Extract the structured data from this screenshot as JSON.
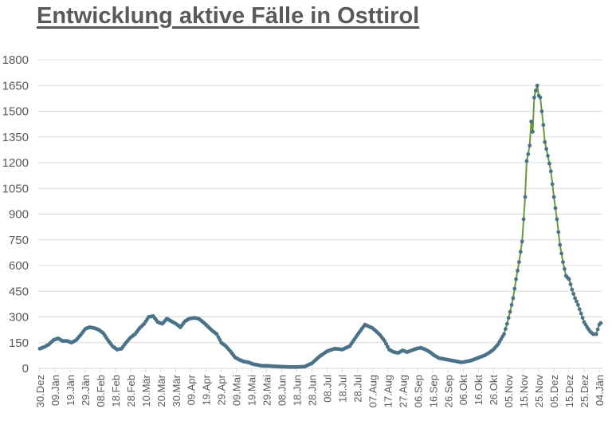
{
  "title": "Entwicklung aktive Fälle in Osttirol",
  "colors": {
    "title": "#595959",
    "axis_text": "#595959",
    "grid": "#d9d9d9",
    "line": "#6a9a3a",
    "marker": "#4a7389"
  },
  "chart_data": {
    "type": "line",
    "title": "Entwicklung aktive Fälle in Osttirol",
    "xlabel": "",
    "ylabel": "",
    "ylim": [
      0,
      1800
    ],
    "yticks": [
      0,
      150,
      300,
      450,
      600,
      750,
      900,
      1050,
      1200,
      1350,
      1500,
      1650,
      1800
    ],
    "grid": true,
    "legend": "none",
    "x_tick_labels": [
      "30.Dez",
      "09.Jän",
      "19.Jän",
      "29.Jän",
      "08.Feb",
      "18.Feb",
      "28.Feb",
      "10.Mär",
      "20.Mär",
      "30.Mär",
      "09.Apr",
      "19.Apr",
      "29.Apr",
      "09.Mai",
      "19.Mai",
      "29.Mai",
      "08.Jun",
      "18.Jun",
      "28.Jun",
      "08.Jul",
      "18.Jul",
      "28.Jul",
      "07.Aug",
      "17.Aug",
      "27.Aug",
      "06.Sep",
      "16.Sep",
      "26.Sep",
      "06.Okt",
      "16.Okt",
      "26.Okt",
      "05.Nov",
      "15.Nov",
      "25.Nov",
      "05.Dez",
      "15.Dez",
      "25.Dez",
      "04.Jän"
    ],
    "x_day_offset_note": "day 0 = 30.Dez, ticks every 10 days",
    "series": [
      {
        "name": "aktive Fälle",
        "days": [
          0,
          3,
          6,
          9,
          12,
          15,
          18,
          21,
          24,
          27,
          30,
          33,
          36,
          39,
          42,
          45,
          48,
          51,
          54,
          57,
          60,
          63,
          66,
          69,
          72,
          75,
          78,
          81,
          84,
          87,
          90,
          93,
          96,
          99,
          102,
          105,
          108,
          111,
          114,
          117,
          120,
          123,
          126,
          129,
          132,
          135,
          138,
          141,
          144,
          147,
          150,
          155,
          160,
          165,
          170,
          175,
          180,
          185,
          190,
          195,
          200,
          205,
          210,
          215,
          220,
          222,
          225,
          228,
          231,
          234,
          237,
          240,
          243,
          246,
          249,
          252,
          255,
          258,
          261,
          264,
          267,
          270,
          273,
          276,
          279,
          282,
          285,
          288,
          291,
          294,
          297,
          300,
          303,
          305,
          307,
          309,
          311,
          313,
          315,
          317,
          319,
          320,
          321,
          322,
          323,
          324,
          325,
          326,
          327,
          328,
          329,
          330,
          331,
          332,
          333,
          334,
          336,
          338,
          340,
          342,
          344,
          346,
          348,
          350,
          352,
          354,
          356,
          358,
          360,
          362,
          364,
          366,
          368,
          370,
          371
        ],
        "values": [
          115,
          125,
          140,
          165,
          175,
          160,
          160,
          150,
          165,
          195,
          230,
          240,
          235,
          225,
          205,
          165,
          130,
          110,
          115,
          150,
          180,
          200,
          235,
          260,
          300,
          305,
          270,
          260,
          290,
          275,
          260,
          240,
          275,
          290,
          295,
          290,
          270,
          245,
          220,
          200,
          150,
          130,
          100,
          65,
          50,
          40,
          35,
          25,
          20,
          15,
          15,
          12,
          10,
          8,
          8,
          10,
          30,
          70,
          100,
          115,
          110,
          130,
          195,
          255,
          235,
          220,
          195,
          160,
          110,
          95,
          90,
          105,
          95,
          105,
          115,
          120,
          110,
          95,
          75,
          60,
          55,
          50,
          45,
          40,
          35,
          40,
          45,
          55,
          65,
          75,
          90,
          110,
          140,
          170,
          200,
          260,
          330,
          410,
          520,
          620,
          740,
          870,
          1000,
          1210,
          1250,
          1300,
          1440,
          1380,
          1580,
          1620,
          1650,
          1590,
          1580,
          1500,
          1420,
          1320,
          1240,
          1150,
          1000,
          870,
          720,
          620,
          540,
          520,
          460,
          410,
          370,
          320,
          270,
          240,
          215,
          200,
          200,
          255,
          265
        ]
      }
    ]
  }
}
